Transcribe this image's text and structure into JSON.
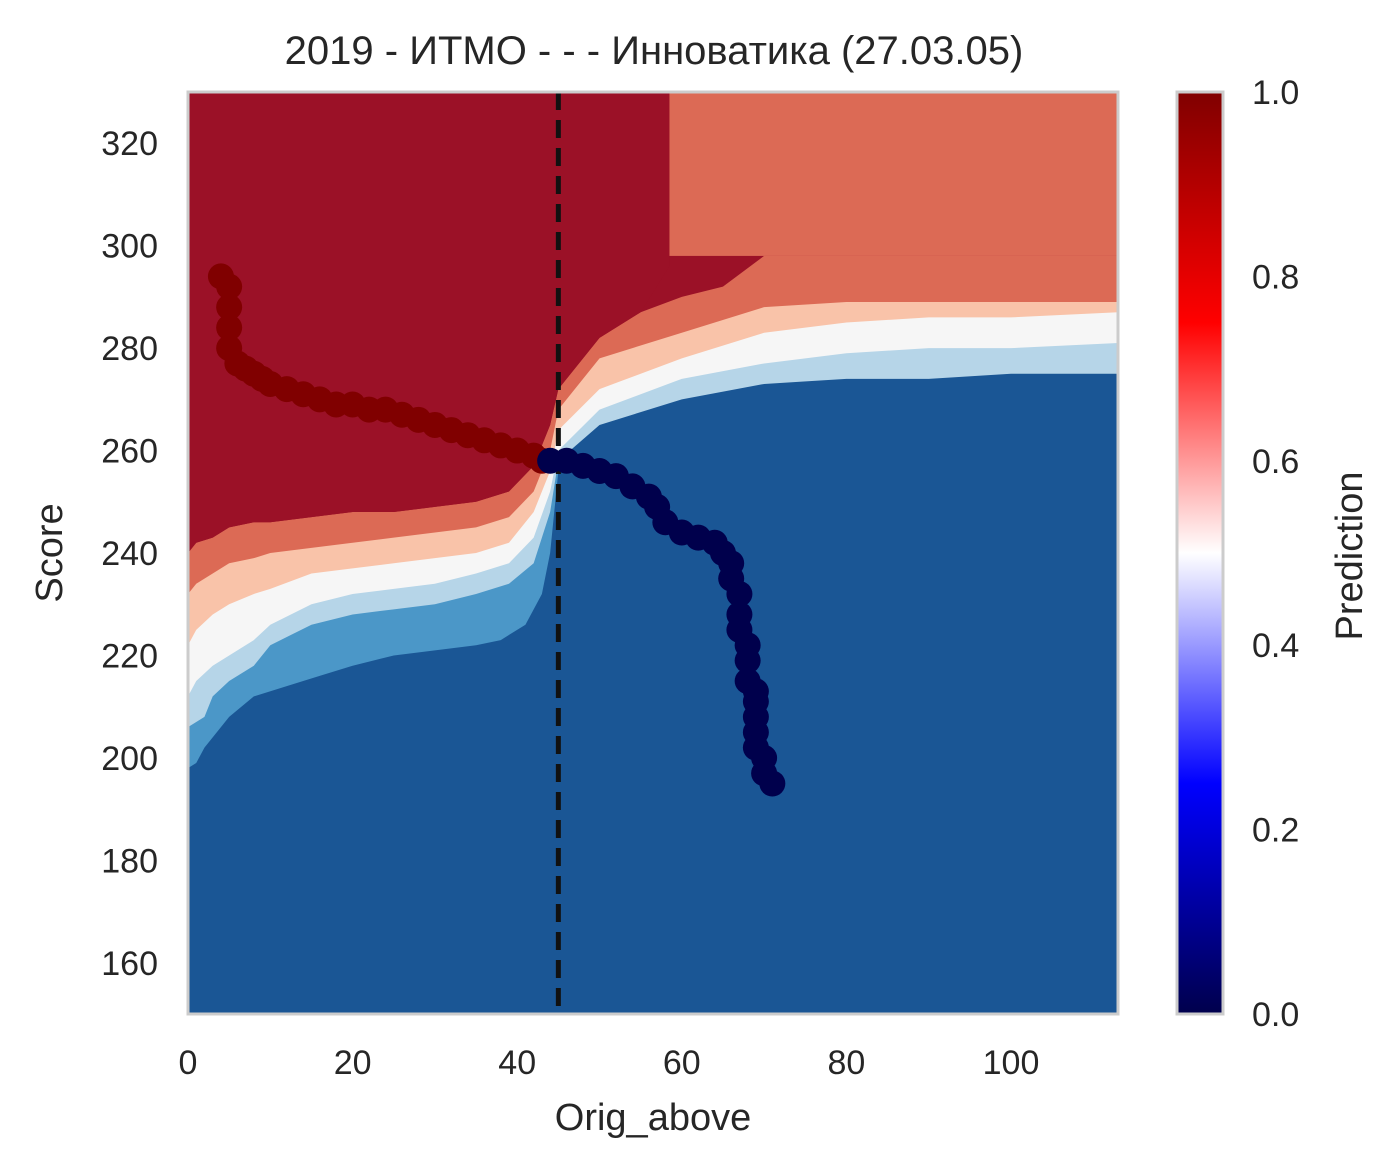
{
  "chart_data": {
    "type": "heatmap",
    "title": "2019 - ИТМО - - - Инноватика (27.03.05)",
    "xlabel": "Orig_above",
    "ylabel": "Score",
    "xlim": [
      0,
      113
    ],
    "ylim": [
      150,
      330
    ],
    "x_ticks": [
      0,
      20,
      40,
      60,
      80,
      100
    ],
    "y_ticks": [
      160,
      180,
      200,
      220,
      240,
      260,
      280,
      300,
      320
    ],
    "grid": false,
    "threshold_line": {
      "x": 45,
      "style": "dashed",
      "color": "#111111"
    },
    "colorbar": {
      "label": "Prediction",
      "colormap": "seismic",
      "range": [
        0,
        1
      ],
      "ticks": [
        "0.0",
        "0.2",
        "0.4",
        "0.6",
        "0.8",
        "1.0"
      ],
      "colors": [
        "#00004c",
        "#0000ff",
        "#ffffff",
        "#ff0000",
        "#800000"
      ]
    },
    "contour_levels": {
      "colors": [
        "#1a5695",
        "#4b97c8",
        "#b6d5e8",
        "#f6f6f6",
        "#f9c3a9",
        "#dc6a55",
        "#9b1127"
      ],
      "boundaries": [
        {
          "x": [
            0,
            1,
            2,
            3,
            5,
            8,
            12,
            16,
            20,
            25,
            30,
            35,
            38,
            41,
            43,
            44,
            45
          ],
          "y": [
            198,
            199,
            202,
            204,
            208,
            212,
            214,
            216,
            218,
            220,
            221,
            222,
            223,
            226,
            232,
            240,
            256
          ]
        },
        {
          "x": [
            0,
            2,
            3,
            5,
            8,
            10,
            15,
            20,
            25,
            30,
            35,
            39,
            42,
            44,
            45,
            50,
            60,
            70,
            80,
            90,
            100,
            113
          ],
          "y": [
            206,
            208,
            212,
            215,
            218,
            222,
            226,
            228,
            229,
            230,
            232,
            234,
            238,
            248,
            258,
            265,
            270,
            273,
            274,
            274,
            275,
            275
          ]
        },
        {
          "x": [
            0,
            1,
            3,
            5,
            8,
            10,
            15,
            20,
            25,
            30,
            35,
            39,
            42,
            44,
            45,
            50,
            60,
            70,
            80,
            90,
            100,
            113
          ],
          "y": [
            212,
            215,
            218,
            220,
            223,
            226,
            230,
            232,
            233,
            234,
            236,
            238,
            243,
            252,
            260,
            268,
            274,
            277,
            279,
            280,
            280,
            281
          ]
        },
        {
          "x": [
            0,
            1,
            3,
            5,
            8,
            10,
            15,
            20,
            25,
            30,
            35,
            39,
            42,
            44,
            45,
            50,
            60,
            70,
            80,
            90,
            100,
            113
          ],
          "y": [
            222,
            225,
            228,
            230,
            232,
            233,
            236,
            237,
            238,
            239,
            240,
            242,
            248,
            256,
            264,
            272,
            278,
            283,
            285,
            286,
            286,
            287
          ]
        },
        {
          "x": [
            0,
            1,
            3,
            5,
            8,
            10,
            15,
            20,
            25,
            30,
            35,
            39,
            42,
            44,
            45,
            50,
            60,
            70,
            80,
            90,
            100,
            113
          ],
          "y": [
            232,
            234,
            236,
            238,
            239,
            240,
            241,
            242,
            243,
            244,
            245,
            247,
            252,
            260,
            268,
            278,
            283,
            288,
            289,
            289,
            289,
            289
          ]
        },
        {
          "x": [
            0,
            1,
            3,
            5,
            8,
            10,
            15,
            20,
            25,
            30,
            35,
            39,
            42,
            44,
            45,
            50,
            55,
            60,
            65,
            70,
            80,
            90,
            100,
            113
          ],
          "y": [
            240,
            242,
            243,
            245,
            246,
            246,
            247,
            248,
            248,
            249,
            250,
            252,
            257,
            265,
            272,
            282,
            287,
            290,
            292,
            298,
            298,
            298,
            298,
            298
          ]
        },
        {
          "x": [
            0,
            10,
            20,
            30,
            35,
            39,
            42,
            44,
            45,
            50,
            55,
            57,
            58,
            58.5,
            59
          ],
          "y": [
            330,
            330,
            330,
            330,
            330,
            330,
            330,
            330,
            330,
            330,
            330,
            330,
            330,
            330,
            330
          ]
        }
      ],
      "upper_right_region": {
        "x_from": 58.5,
        "y_from": 298,
        "color": "#dc6a55"
      }
    },
    "series": [
      {
        "values_description": "",
        "color": "#800000",
        "x": [
          4,
          5,
          5,
          5,
          5,
          6,
          7,
          8,
          9,
          10,
          12,
          14,
          16,
          18,
          20,
          22,
          24,
          26,
          28,
          30,
          32,
          34,
          36,
          38,
          40,
          42,
          43
        ],
        "y": [
          294,
          292,
          288,
          284,
          280,
          277,
          276,
          275,
          274,
          273,
          272,
          271,
          270,
          269,
          269,
          268,
          268,
          267,
          266,
          265,
          264,
          263,
          262,
          261,
          260,
          259,
          258
        ]
      },
      {
        "values_description": "",
        "color": "#00004c",
        "x": [
          44,
          46,
          48,
          50,
          52,
          54,
          56,
          57,
          58,
          60,
          62,
          64,
          65,
          66,
          66,
          67,
          67,
          67,
          68,
          68,
          68,
          69,
          69,
          69,
          69,
          69,
          70,
          70,
          71
        ],
        "y": [
          258,
          258,
          257,
          256,
          255,
          253,
          251,
          249,
          246,
          244,
          243,
          242,
          240,
          238,
          235,
          232,
          228,
          225,
          222,
          219,
          215,
          213,
          211,
          208,
          205,
          202,
          200,
          197,
          195
        ]
      }
    ]
  }
}
